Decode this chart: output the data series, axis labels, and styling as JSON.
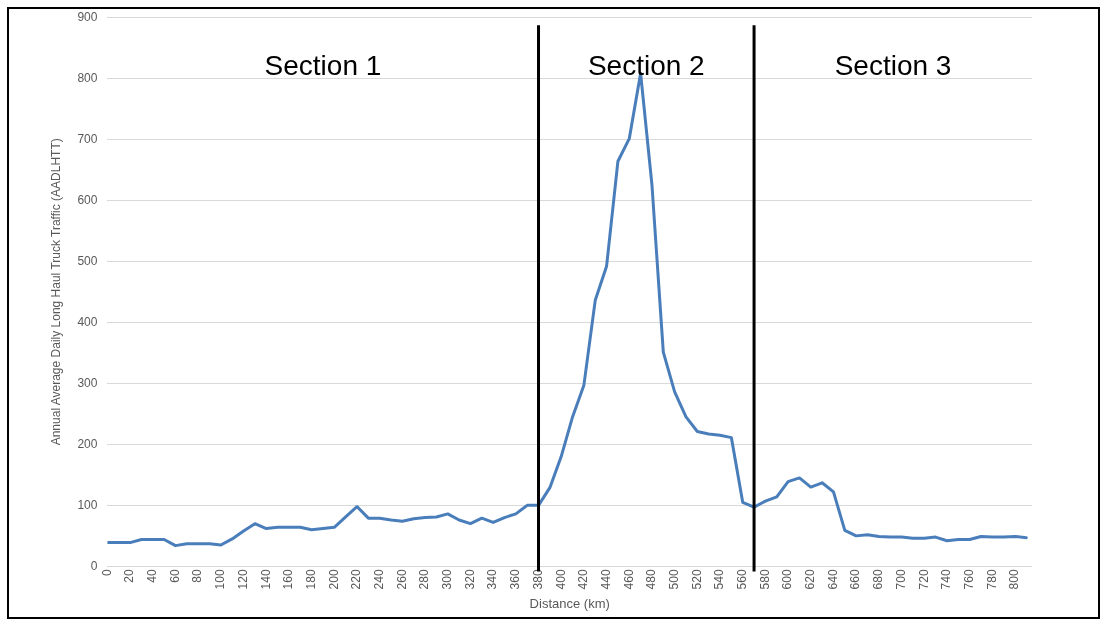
{
  "chart_data": {
    "type": "line",
    "xlabel": "Distance (km)",
    "ylabel": "Annual Average Daily Long Haul Truck Traffic (AADLHTT)",
    "x": [
      0,
      10,
      20,
      30,
      40,
      50,
      60,
      70,
      80,
      90,
      100,
      110,
      120,
      130,
      140,
      150,
      160,
      170,
      180,
      190,
      200,
      210,
      220,
      230,
      240,
      250,
      260,
      270,
      280,
      290,
      300,
      310,
      320,
      330,
      340,
      350,
      360,
      370,
      380,
      390,
      400,
      410,
      420,
      430,
      440,
      450,
      460,
      470,
      480,
      490,
      500,
      510,
      520,
      530,
      540,
      550,
      560,
      570,
      580,
      590,
      600,
      610,
      620,
      630,
      640,
      650,
      660,
      670,
      680,
      690,
      700,
      710,
      720,
      730,
      740,
      750,
      760,
      770,
      780,
      790,
      800,
      810
    ],
    "series": [
      {
        "color": "#4a7ebb",
        "values": [
          39,
          39,
          39,
          44,
          44,
          44,
          34,
          37,
          37,
          37,
          35,
          45,
          58,
          70,
          62,
          64,
          64,
          64,
          60,
          62,
          64,
          81,
          98,
          79,
          79,
          76,
          74,
          78,
          80,
          81,
          86,
          76,
          70,
          79,
          72,
          80,
          86,
          100,
          100,
          129,
          180,
          245,
          297,
          436,
          492,
          664,
          701,
          808,
          625,
          351,
          286,
          245,
          221,
          217,
          215,
          211,
          105,
          97,
          107,
          114,
          139,
          145,
          130,
          137,
          122,
          59,
          50,
          52,
          49,
          48,
          48,
          46,
          46,
          48,
          42,
          44,
          44,
          49,
          48,
          48,
          49,
          47
        ]
      }
    ],
    "xlim": [
      0,
      815
    ],
    "xticks": [
      0,
      20,
      40,
      60,
      80,
      100,
      120,
      140,
      160,
      180,
      200,
      220,
      240,
      260,
      280,
      300,
      320,
      340,
      360,
      380,
      400,
      420,
      440,
      460,
      480,
      500,
      520,
      540,
      560,
      580,
      600,
      620,
      640,
      660,
      680,
      700,
      720,
      740,
      760,
      780,
      800
    ],
    "ylim": [
      0,
      900
    ],
    "yticks": [
      0,
      100,
      200,
      300,
      400,
      500,
      600,
      700,
      800,
      900
    ],
    "grid": "y",
    "legend": false,
    "marker": "none",
    "line_style": "solid",
    "ref_lines": [
      {
        "axis": "x",
        "value": 380,
        "color": "#000000"
      },
      {
        "axis": "x",
        "value": 570,
        "color": "#000000"
      }
    ],
    "annotations": [
      "Section 1",
      "Section 2",
      "Section 3"
    ]
  }
}
